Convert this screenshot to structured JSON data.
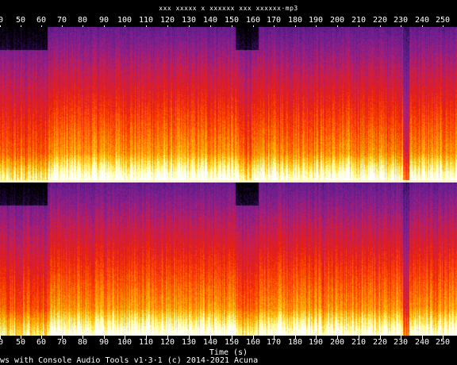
{
  "title": "xxx xxxxx x xxxxxx xxx xxxxxx·mp3",
  "x_axis": {
    "label": "Time (s)",
    "tick_labels": [
      "0",
      "50",
      "60",
      "70",
      "80",
      "90",
      "100",
      "110",
      "120",
      "130",
      "140",
      "150",
      "160",
      "170",
      "180",
      "190",
      "200",
      "210",
      "220",
      "230",
      "240",
      "250"
    ]
  },
  "footer": "ws with Console Audio Tools v1·3·1  (c) 2014-2021 Acuna",
  "colors": {
    "background": "#000000",
    "colormap": [
      "#000000",
      "#2a0a4a",
      "#5a1e8c",
      "#8c1e8c",
      "#c81e50",
      "#e61e14",
      "#ff4600",
      "#ff8c00",
      "#ffc814",
      "#ffff96",
      "#ffffff"
    ]
  }
}
